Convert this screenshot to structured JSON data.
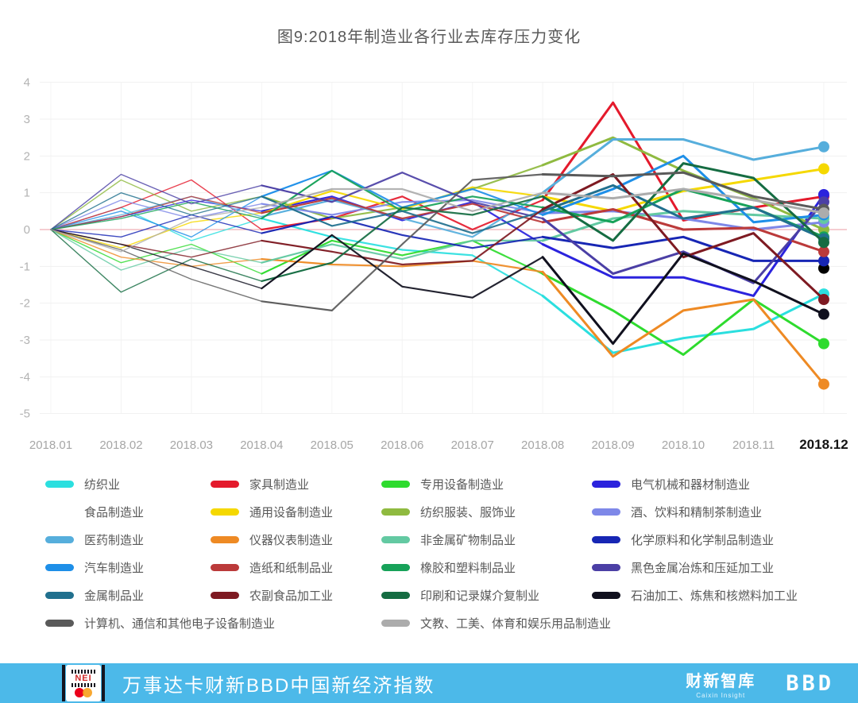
{
  "title": "图9:2018年制造业各行业去库存压力变化",
  "chart_data": {
    "type": "line",
    "x_labels": [
      "2018.01",
      "2018.02",
      "2018.03",
      "2018.04",
      "2018.05",
      "2018.06",
      "2018.07",
      "2018.08",
      "2018.09",
      "2018.10",
      "2018.11",
      "2018.12"
    ],
    "x_label_emphasized": "2018.12",
    "yticks": [
      4,
      3,
      2,
      1,
      0,
      -1,
      -2,
      -3,
      -4,
      -5
    ],
    "ylim": [
      -5,
      4
    ],
    "grid": true,
    "zero_line_color": "#eb9ba3",
    "grid_color": "#f1f1f1",
    "axis_text_color": "#a6a6a6",
    "legend_position": "bottom",
    "series": [
      {
        "name": "纺织业",
        "color": "#2bdfdf",
        "values": [
          0,
          0.6,
          -0.3,
          0.3,
          -0.2,
          -0.55,
          -0.7,
          -1.8,
          -3.35,
          -2.95,
          -2.7,
          -1.75
        ]
      },
      {
        "name": "家具制造业",
        "color": "#e41a2c",
        "values": [
          0,
          0.6,
          1.35,
          0,
          0.3,
          0.9,
          0,
          0.8,
          3.45,
          0.25,
          0.6,
          0.9
        ]
      },
      {
        "name": "专用设备制造业",
        "color": "#2edb2e",
        "values": [
          0,
          -0.9,
          -0.4,
          -1.2,
          -0.3,
          -0.7,
          -0.3,
          -1.2,
          -2.2,
          -3.4,
          -1.9,
          -3.1
        ]
      },
      {
        "name": "电气机械和器材制造业",
        "color": "#2b23dd",
        "values": [
          0,
          0.35,
          0.8,
          0.5,
          0.9,
          0.25,
          0.75,
          -0.4,
          -1.3,
          -1.3,
          -1.8,
          0.95
        ]
      },
      {
        "name": "食品制造业",
        "color": "#8adld6",
        "values": [
          0,
          0.7,
          0.2,
          0.55,
          0,
          -0.3,
          -0.5,
          -0.5,
          -0.75,
          -0.8,
          -0.8,
          -1.05
        ]
      },
      {
        "name": "通用设备制造业",
        "color": "#f5d800",
        "values": [
          0,
          -0.5,
          0.2,
          0.45,
          1.05,
          0.55,
          1.15,
          0.9,
          0.5,
          1.05,
          1.35,
          1.65
        ]
      },
      {
        "name": "纺织服装、服饰业",
        "color": "#8fba40",
        "values": [
          0,
          1.35,
          0.5,
          0.9,
          0.3,
          0.6,
          1.1,
          1.75,
          2.5,
          1.6,
          0.85,
          0
        ]
      },
      {
        "name": "酒、饮料和精制茶制造业",
        "color": "#7e88e8",
        "values": [
          0,
          0.8,
          0.3,
          0.7,
          0.4,
          0.75,
          0.8,
          0.45,
          0.5,
          0.3,
          0,
          0.2
        ]
      },
      {
        "name": "医药制造业",
        "color": "#56aedc",
        "values": [
          0,
          0.4,
          0.9,
          0.35,
          0.8,
          0.3,
          -0.2,
          1.0,
          2.45,
          2.45,
          1.9,
          2.25
        ]
      },
      {
        "name": "仪器仪表制造业",
        "color": "#ee8a24",
        "values": [
          0,
          -0.75,
          -1.0,
          -0.8,
          -0.95,
          -1.0,
          -0.85,
          -1.15,
          -3.45,
          -2.2,
          -1.9,
          -4.2
        ]
      },
      {
        "name": "非金属矿物制品业",
        "color": "#63c9a2",
        "values": [
          0,
          -1.1,
          -0.5,
          -0.9,
          -0.4,
          -0.8,
          -0.3,
          -0.3,
          0.3,
          0.5,
          0.4,
          0.3
        ]
      },
      {
        "name": "化学原料和化学制品制造业",
        "color": "#1726b4",
        "values": [
          0,
          -0.2,
          0.4,
          -0.1,
          0.35,
          -0.15,
          -0.5,
          -0.2,
          -0.5,
          -0.2,
          -0.85,
          -0.85
        ]
      },
      {
        "name": "汽车制造业",
        "color": "#1e8fe8",
        "values": [
          0,
          0.5,
          -0.2,
          0.9,
          1.6,
          0.6,
          1.1,
          0.4,
          1.1,
          2.0,
          0.2,
          0.4
        ]
      },
      {
        "name": "造纸和纸制品业",
        "color": "#bb3a3a",
        "values": [
          0,
          0.35,
          0.9,
          0.45,
          0.85,
          0.3,
          0.7,
          0.2,
          0.55,
          0,
          0.05,
          -0.6
        ]
      },
      {
        "name": "橡胶和塑料制品业",
        "color": "#17a259",
        "values": [
          0,
          0.3,
          0.75,
          0.3,
          1.6,
          0.5,
          0.9,
          0.6,
          0.2,
          1.1,
          0.6,
          -0.2
        ]
      },
      {
        "name": "黑色金属冶炼和压延加工业",
        "color": "#4b3fa5",
        "values": [
          0,
          1.5,
          0.7,
          1.2,
          0.75,
          1.55,
          0.75,
          0.3,
          -1.2,
          -0.6,
          -1.45,
          0.75
        ]
      },
      {
        "name": "金属制品业",
        "color": "#21708e",
        "values": [
          0,
          1.0,
          0.4,
          0.9,
          0.1,
          0.5,
          -0.1,
          0.5,
          1.2,
          0.3,
          0.6,
          -0.25
        ]
      },
      {
        "name": "农副食品加工业",
        "color": "#7e1a22",
        "values": [
          0,
          -0.4,
          -0.75,
          -0.3,
          -0.6,
          -0.95,
          -0.85,
          0.55,
          1.5,
          -0.75,
          -0.1,
          -1.9
        ]
      },
      {
        "name": "印刷和记录媒介复制业",
        "color": "#156c42",
        "values": [
          0,
          -1.7,
          -0.8,
          -1.4,
          -0.9,
          0.6,
          0.4,
          0.9,
          -0.3,
          1.8,
          1.4,
          -0.35
        ]
      },
      {
        "name": "石油加工、炼焦和核燃料加工业",
        "color": "#10101e",
        "values": [
          0,
          -0.4,
          -1.0,
          -1.6,
          -0.15,
          -1.55,
          -1.85,
          -0.75,
          -3.1,
          -0.65,
          -1.4,
          -2.3
        ]
      },
      {
        "name": "计算机、通信和其他电子设备制造业",
        "color": "#5a5a5a",
        "values": [
          0,
          -0.55,
          -1.35,
          -1.95,
          -2.2,
          -0.4,
          1.35,
          1.5,
          1.45,
          1.55,
          0.9,
          0.55
        ]
      },
      {
        "name": "文教、工美、体育和娱乐用品制造业",
        "color": "#acacac",
        "values": [
          0,
          -0.6,
          0.3,
          0.6,
          1.1,
          1.1,
          0.5,
          1.0,
          0.85,
          1.1,
          0.8,
          0.45
        ]
      }
    ]
  },
  "footer": {
    "bar_color": "#4cb9e9",
    "nei_logo_text": "NEI",
    "brand_text": "万事达卡财新BBD中国新经济指数",
    "right_logo_primary": "财新智库",
    "right_logo_sub": "Caixin Insight",
    "right_logo_secondary": "BBD"
  }
}
